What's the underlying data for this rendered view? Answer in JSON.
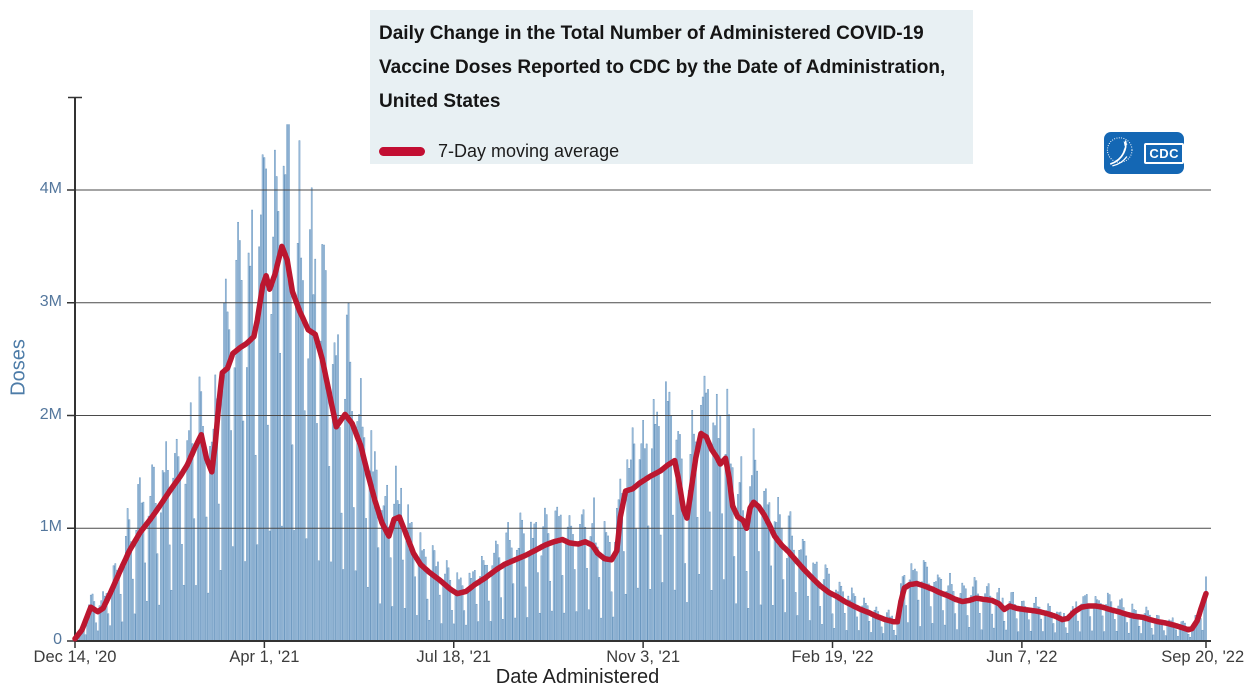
{
  "header": {
    "title": "Daily Change in the Total Number of Administered COVID-19 Vaccine Doses Reported to CDC by the Date of Administration, United States"
  },
  "legend": {
    "label": "7-Day moving average",
    "color": "#c20e32"
  },
  "logo": {
    "text": "CDC"
  },
  "chart_data": {
    "type": "bar+line",
    "title": "Daily Change in the Total Number of Administered COVID-19 Vaccine Doses Reported to CDC by the Date of Administration, United States",
    "xlabel": "Date Administered",
    "ylabel": "Doses",
    "x_axis": {
      "title": "Date Administered",
      "range_days": [
        0,
        645
      ],
      "ticks": [
        {
          "label": "Dec 14, '20",
          "day": 0
        },
        {
          "label": "Apr 1, '21",
          "day": 108
        },
        {
          "label": "Jul 18, '21",
          "day": 216
        },
        {
          "label": "Nov 3, '21",
          "day": 324
        },
        {
          "label": "Feb 19, '22",
          "day": 432
        },
        {
          "label": "Jun 7, '22",
          "day": 540
        },
        {
          "label": "Sep 20, '22",
          "day": 645
        }
      ]
    },
    "y_axis": {
      "title": "Doses",
      "unit": "millions of doses",
      "ylim_millions": [
        0,
        4.8
      ],
      "ticks": [
        {
          "label": "0",
          "value_m": 0
        },
        {
          "label": "1M",
          "value_m": 1
        },
        {
          "label": "2M",
          "value_m": 2
        },
        {
          "label": "3M",
          "value_m": 3
        },
        {
          "label": "4M",
          "value_m": 4
        }
      ]
    },
    "grid": "horizontal",
    "legend_position": "top-left in title box",
    "series": [
      {
        "name": "Daily doses administered",
        "type": "bar",
        "color": "#a9c6e1",
        "edge_color": "#5f8fba",
        "pattern": {
          "note": "daily bars oscillate weekly around the 7-day moving average; weekday highs ~1.3x average, weekend lows ~0.3x; tallest bar ~4.6M in mid-April 2021",
          "weekday_multipliers": [
            1.06,
            1.3,
            1.34,
            1.26,
            1.14,
            0.66,
            0.3
          ],
          "jitter": 0.15,
          "max_value_m": 4.58
        }
      },
      {
        "name": "7-Day moving average",
        "type": "line",
        "color": "#bb1730",
        "points_day_value_millions": [
          [
            0,
            0.02
          ],
          [
            4,
            0.1
          ],
          [
            9,
            0.3
          ],
          [
            13,
            0.26
          ],
          [
            16,
            0.29
          ],
          [
            20,
            0.42
          ],
          [
            26,
            0.63
          ],
          [
            31,
            0.8
          ],
          [
            37,
            0.96
          ],
          [
            43,
            1.08
          ],
          [
            48,
            1.19
          ],
          [
            54,
            1.33
          ],
          [
            60,
            1.46
          ],
          [
            64,
            1.56
          ],
          [
            68,
            1.7
          ],
          [
            72,
            1.83
          ],
          [
            75,
            1.62
          ],
          [
            78,
            1.5
          ],
          [
            80,
            1.75
          ],
          [
            82,
            2.1
          ],
          [
            84,
            2.38
          ],
          [
            87,
            2.42
          ],
          [
            90,
            2.55
          ],
          [
            94,
            2.6
          ],
          [
            98,
            2.64
          ],
          [
            102,
            2.7
          ],
          [
            104,
            2.85
          ],
          [
            107,
            3.15
          ],
          [
            109,
            3.24
          ],
          [
            111,
            3.12
          ],
          [
            114,
            3.25
          ],
          [
            118,
            3.5
          ],
          [
            121,
            3.38
          ],
          [
            124,
            3.1
          ],
          [
            128,
            2.93
          ],
          [
            133,
            2.76
          ],
          [
            137,
            2.72
          ],
          [
            141,
            2.5
          ],
          [
            145,
            2.2
          ],
          [
            149,
            1.9
          ],
          [
            154,
            2.01
          ],
          [
            158,
            1.93
          ],
          [
            163,
            1.73
          ],
          [
            167,
            1.48
          ],
          [
            171,
            1.25
          ],
          [
            175,
            1.05
          ],
          [
            179,
            0.93
          ],
          [
            182,
            1.08
          ],
          [
            185,
            1.1
          ],
          [
            189,
            0.94
          ],
          [
            193,
            0.78
          ],
          [
            197,
            0.68
          ],
          [
            202,
            0.61
          ],
          [
            208,
            0.54
          ],
          [
            214,
            0.46
          ],
          [
            218,
            0.42
          ],
          [
            223,
            0.44
          ],
          [
            228,
            0.5
          ],
          [
            234,
            0.56
          ],
          [
            240,
            0.63
          ],
          [
            245,
            0.68
          ],
          [
            251,
            0.72
          ],
          [
            257,
            0.76
          ],
          [
            262,
            0.8
          ],
          [
            268,
            0.85
          ],
          [
            273,
            0.88
          ],
          [
            278,
            0.9
          ],
          [
            282,
            0.87
          ],
          [
            287,
            0.86
          ],
          [
            291,
            0.88
          ],
          [
            295,
            0.85
          ],
          [
            298,
            0.78
          ],
          [
            302,
            0.73
          ],
          [
            306,
            0.72
          ],
          [
            309,
            0.8
          ],
          [
            311,
            1.1
          ],
          [
            314,
            1.33
          ],
          [
            318,
            1.35
          ],
          [
            322,
            1.4
          ],
          [
            328,
            1.46
          ],
          [
            334,
            1.51
          ],
          [
            338,
            1.56
          ],
          [
            342,
            1.6
          ],
          [
            344,
            1.45
          ],
          [
            347,
            1.17
          ],
          [
            349,
            1.09
          ],
          [
            351,
            1.3
          ],
          [
            354,
            1.62
          ],
          [
            357,
            1.84
          ],
          [
            360,
            1.81
          ],
          [
            363,
            1.7
          ],
          [
            366,
            1.63
          ],
          [
            368,
            1.57
          ],
          [
            371,
            1.62
          ],
          [
            373,
            1.45
          ],
          [
            375,
            1.2
          ],
          [
            378,
            1.1
          ],
          [
            381,
            1.07
          ],
          [
            383,
            1.0
          ],
          [
            385,
            1.18
          ],
          [
            387,
            1.23
          ],
          [
            390,
            1.19
          ],
          [
            393,
            1.12
          ],
          [
            396,
            1.03
          ],
          [
            399,
            0.93
          ],
          [
            403,
            0.85
          ],
          [
            407,
            0.79
          ],
          [
            412,
            0.7
          ],
          [
            416,
            0.63
          ],
          [
            421,
            0.55
          ],
          [
            425,
            0.49
          ],
          [
            430,
            0.43
          ],
          [
            435,
            0.39
          ],
          [
            439,
            0.35
          ],
          [
            444,
            0.31
          ],
          [
            448,
            0.28
          ],
          [
            453,
            0.25
          ],
          [
            457,
            0.22
          ],
          [
            462,
            0.19
          ],
          [
            467,
            0.17
          ],
          [
            469,
            0.17
          ],
          [
            471,
            0.35
          ],
          [
            473,
            0.47
          ],
          [
            476,
            0.5
          ],
          [
            480,
            0.51
          ],
          [
            484,
            0.49
          ],
          [
            489,
            0.46
          ],
          [
            493,
            0.43
          ],
          [
            498,
            0.4
          ],
          [
            502,
            0.37
          ],
          [
            506,
            0.35
          ],
          [
            510,
            0.36
          ],
          [
            514,
            0.38
          ],
          [
            518,
            0.37
          ],
          [
            523,
            0.36
          ],
          [
            527,
            0.33
          ],
          [
            530,
            0.28
          ],
          [
            533,
            0.31
          ],
          [
            537,
            0.29
          ],
          [
            541,
            0.28
          ],
          [
            546,
            0.27
          ],
          [
            550,
            0.26
          ],
          [
            555,
            0.24
          ],
          [
            559,
            0.22
          ],
          [
            563,
            0.19
          ],
          [
            566,
            0.2
          ],
          [
            570,
            0.26
          ],
          [
            574,
            0.3
          ],
          [
            578,
            0.31
          ],
          [
            582,
            0.31
          ],
          [
            586,
            0.3
          ],
          [
            590,
            0.28
          ],
          [
            595,
            0.26
          ],
          [
            599,
            0.24
          ],
          [
            604,
            0.22
          ],
          [
            609,
            0.21
          ],
          [
            613,
            0.19
          ],
          [
            618,
            0.17
          ],
          [
            622,
            0.16
          ],
          [
            627,
            0.14
          ],
          [
            631,
            0.12
          ],
          [
            635,
            0.1
          ],
          [
            637,
            0.11
          ],
          [
            640,
            0.18
          ],
          [
            642,
            0.28
          ],
          [
            645,
            0.42
          ]
        ]
      }
    ]
  }
}
